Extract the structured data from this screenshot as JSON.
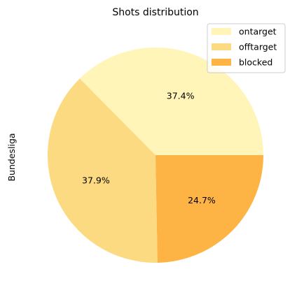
{
  "chart_data": {
    "type": "pie",
    "title": "Shots distribution",
    "ylabel": "Bundesliga",
    "slices": [
      {
        "label": "ontarget",
        "value": 37.4,
        "label_text": "37.4%",
        "color": "#fff5b8"
      },
      {
        "label": "offtarget",
        "value": 37.9,
        "label_text": "37.9%",
        "color": "#fcda81"
      },
      {
        "label": "blocked",
        "value": 24.7,
        "label_text": "24.7%",
        "color": "#feb445"
      }
    ],
    "start_angle_deg": 0,
    "direction": "counterclockwise",
    "legend_position": "top-right"
  }
}
